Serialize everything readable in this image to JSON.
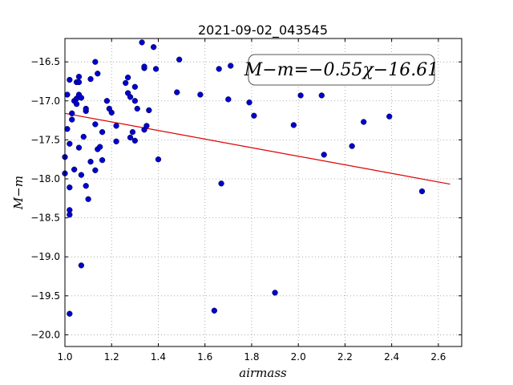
{
  "chart_data": {
    "type": "scatter",
    "title": "2021-09-02_043545",
    "xlabel": "airmass",
    "ylabel": "M−m",
    "xlim": [
      1.0,
      2.7
    ],
    "ylim": [
      -20.15,
      -16.2
    ],
    "y_inverted": true,
    "grid": true,
    "x_ticks": [
      1.0,
      1.2,
      1.4,
      1.6,
      1.8,
      2.0,
      2.2,
      2.4,
      2.6
    ],
    "x_tick_labels": [
      "1.0",
      "1.2",
      "1.4",
      "1.6",
      "1.8",
      "2.0",
      "2.2",
      "2.4",
      "2.6"
    ],
    "y_ticks": [
      -16.5,
      -17.0,
      -17.5,
      -18.0,
      -18.5,
      -19.0,
      -19.5,
      -20.0
    ],
    "y_tick_labels": [
      "−16.5",
      "−17.0",
      "−17.5",
      "−18.0",
      "−18.5",
      "−19.0",
      "−19.5",
      "−20.0"
    ],
    "annotation": "M−m=−0.55χ−16.61",
    "annotation_placement": "top-right",
    "colors": {
      "points": "#0000cc",
      "fit_line": "#dd0000",
      "grid": "#999999"
    },
    "fit": {
      "slope": -0.55,
      "intercept": -16.61,
      "x_range": [
        1.0,
        2.65
      ]
    },
    "series": [
      {
        "values": [
          [
            1.0,
            -17.72
          ],
          [
            1.0,
            -17.93
          ],
          [
            1.01,
            -17.36
          ],
          [
            1.01,
            -16.92
          ],
          [
            1.02,
            -17.55
          ],
          [
            1.02,
            -18.11
          ],
          [
            1.02,
            -18.4
          ],
          [
            1.02,
            -18.46
          ],
          [
            1.02,
            -19.73
          ],
          [
            1.02,
            -16.73
          ],
          [
            1.03,
            -17.16
          ],
          [
            1.03,
            -17.24
          ],
          [
            1.04,
            -17.0
          ],
          [
            1.04,
            -17.88
          ],
          [
            1.05,
            -16.97
          ],
          [
            1.05,
            -17.04
          ],
          [
            1.05,
            -16.76
          ],
          [
            1.06,
            -16.92
          ],
          [
            1.06,
            -16.69
          ],
          [
            1.06,
            -17.6
          ],
          [
            1.06,
            -16.76
          ],
          [
            1.07,
            -16.96
          ],
          [
            1.07,
            -17.95
          ],
          [
            1.07,
            -19.11
          ],
          [
            1.08,
            -17.46
          ],
          [
            1.09,
            -18.09
          ],
          [
            1.09,
            -17.13
          ],
          [
            1.09,
            -17.1
          ],
          [
            1.1,
            -18.26
          ],
          [
            1.11,
            -17.78
          ],
          [
            1.11,
            -16.72
          ],
          [
            1.13,
            -17.89
          ],
          [
            1.13,
            -17.3
          ],
          [
            1.13,
            -16.5
          ],
          [
            1.14,
            -16.65
          ],
          [
            1.14,
            -17.62
          ],
          [
            1.15,
            -17.59
          ],
          [
            1.16,
            -17.4
          ],
          [
            1.16,
            -17.76
          ],
          [
            1.18,
            -17.0
          ],
          [
            1.19,
            -17.1
          ],
          [
            1.2,
            -17.15
          ],
          [
            1.22,
            -17.32
          ],
          [
            1.22,
            -17.52
          ],
          [
            1.26,
            -16.77
          ],
          [
            1.27,
            -16.7
          ],
          [
            1.27,
            -16.9
          ],
          [
            1.28,
            -17.47
          ],
          [
            1.28,
            -16.95
          ],
          [
            1.29,
            -17.4
          ],
          [
            1.3,
            -17.51
          ],
          [
            1.3,
            -17.0
          ],
          [
            1.3,
            -16.82
          ],
          [
            1.31,
            -17.1
          ],
          [
            1.33,
            -16.25
          ],
          [
            1.34,
            -16.58
          ],
          [
            1.34,
            -16.56
          ],
          [
            1.34,
            -17.37
          ],
          [
            1.35,
            -17.32
          ],
          [
            1.36,
            -17.12
          ],
          [
            1.38,
            -16.31
          ],
          [
            1.39,
            -16.59
          ],
          [
            1.4,
            -17.75
          ],
          [
            1.48,
            -16.89
          ],
          [
            1.49,
            -16.47
          ],
          [
            1.58,
            -16.92
          ],
          [
            1.64,
            -19.69
          ],
          [
            1.66,
            -16.59
          ],
          [
            1.67,
            -18.06
          ],
          [
            1.7,
            -16.98
          ],
          [
            1.71,
            -16.55
          ],
          [
            1.79,
            -17.02
          ],
          [
            1.81,
            -17.19
          ],
          [
            1.9,
            -19.46
          ],
          [
            1.98,
            -17.31
          ],
          [
            2.01,
            -16.93
          ],
          [
            2.1,
            -16.93
          ],
          [
            2.11,
            -17.69
          ],
          [
            2.23,
            -17.58
          ],
          [
            2.28,
            -17.27
          ],
          [
            2.39,
            -17.2
          ],
          [
            2.53,
            -18.16
          ]
        ]
      }
    ]
  }
}
